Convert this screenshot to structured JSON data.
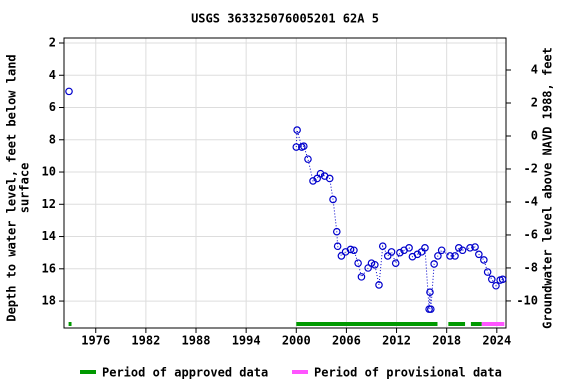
{
  "chart_data": {
    "type": "scatter",
    "title": "USGS 363325076005201 62A  5",
    "ylabel": [
      "Depth to water level, feet below land",
      "surface"
    ],
    "y2label": "Groundwater level above NAVD 1988, feet",
    "xlim": [
      1972.2,
      2025.1
    ],
    "xticks": [
      1976,
      1982,
      1988,
      1994,
      2000,
      2006,
      2012,
      2018,
      2024
    ],
    "ylim": [
      19.67,
      1.69
    ],
    "yticks": [
      2,
      4,
      6,
      8,
      10,
      12,
      14,
      16,
      18
    ],
    "y2lim": [
      -11.64,
      5.94
    ],
    "y2ticks": [
      -10,
      -8,
      -6,
      -4,
      -2,
      0,
      2,
      4
    ],
    "grid": true,
    "series": [
      {
        "color": "#0000cc",
        "x": [
          1972.8,
          2000.0,
          2000.1,
          2000.66,
          2000.9,
          2001.4,
          2002.0,
          2002.5,
          2002.9,
          2003.4,
          2004.0,
          2004.4,
          2004.85,
          2004.95,
          2005.4,
          2005.9,
          2006.5,
          2006.9,
          2007.4,
          2007.8,
          2008.6,
          2009.0,
          2009.4,
          2009.9,
          2010.35,
          2010.95,
          2011.4,
          2011.9,
          2012.4,
          2012.9,
          2013.5,
          2013.9,
          2014.5,
          2015.0,
          2015.4,
          2015.9,
          2016.0,
          2016.1,
          2016.5,
          2016.95,
          2017.4,
          2018.4,
          2019.0,
          2019.45,
          2019.9,
          2020.8,
          2021.4,
          2021.85,
          2022.45,
          2022.9,
          2023.4,
          2023.9,
          2024.4,
          2024.7
        ],
        "values": [
          5.0,
          8.45,
          7.4,
          8.45,
          8.4,
          9.2,
          10.55,
          10.4,
          10.1,
          10.25,
          10.4,
          11.7,
          13.7,
          14.6,
          15.2,
          14.95,
          14.8,
          14.85,
          15.65,
          16.5,
          15.95,
          15.65,
          15.75,
          17.0,
          14.6,
          15.2,
          14.95,
          15.65,
          15.0,
          14.85,
          14.7,
          15.25,
          15.1,
          14.95,
          14.7,
          18.5,
          17.45,
          18.5,
          15.7,
          15.2,
          14.85,
          15.2,
          15.2,
          14.7,
          14.85,
          14.7,
          14.65,
          15.1,
          15.45,
          16.2,
          16.65,
          17.05,
          16.7,
          16.65
        ]
      }
    ],
    "periods": [
      {
        "name": "Period of approved data",
        "color": "#009900",
        "ranges": [
          [
            1972.75,
            1973.1
          ],
          [
            2000.0,
            2016.9
          ],
          [
            2018.2,
            2020.2
          ],
          [
            2020.9,
            2022.2
          ]
        ]
      },
      {
        "name": "Period of provisional data",
        "color": "#ff55ff",
        "ranges": [
          [
            2022.2,
            2024.9
          ]
        ]
      }
    ]
  }
}
